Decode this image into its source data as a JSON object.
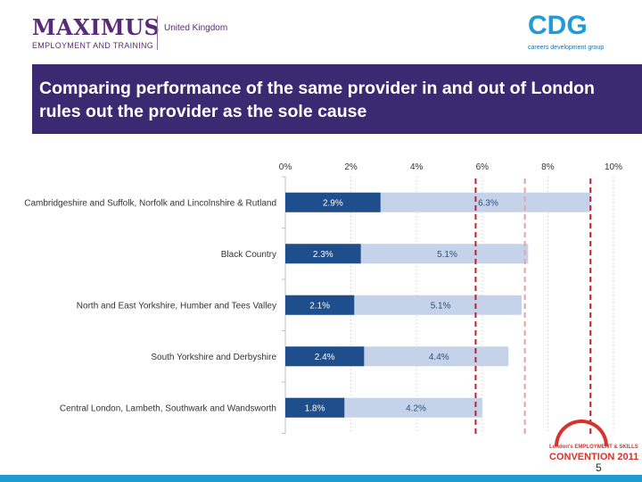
{
  "header": {
    "left_logo": {
      "brand": "MAXIMUS",
      "subtitle": "EMPLOYMENT AND TRAINING",
      "region": "United Kingdom"
    },
    "right_logo": {
      "mark": "CDG",
      "tagline": "careers development group"
    }
  },
  "title": "Comparing performance of the same provider in and out of London rules out the provider as the sole cause",
  "chart_data": {
    "type": "bar",
    "orientation": "horizontal",
    "xlim": [
      0,
      10
    ],
    "x_ticks": [
      "0%",
      "2%",
      "4%",
      "6%",
      "8%",
      "10%"
    ],
    "categories": [
      "Cambridgeshire and Suffolk, Norfolk and Lincolnshire & Rutland",
      "Black Country",
      "North and East Yorkshire, Humber and Tees Valley",
      "South Yorkshire and Derbyshire",
      "Central London, Lambeth, Southwark and Wandsworth"
    ],
    "series": [
      {
        "values": [
          2.9,
          2.3,
          2.1,
          2.4,
          1.8
        ],
        "labels": [
          "2.9%",
          "2.3%",
          "2.1%",
          "2.4%",
          "1.8%"
        ],
        "color": "#1f4e8c"
      },
      {
        "values": [
          9.3,
          7.4,
          7.2,
          6.8,
          6.0
        ],
        "labels": [
          "6.3%",
          "5.1%",
          "5.1%",
          "4.4%",
          "4.2%"
        ],
        "color": "#c5d3ea"
      }
    ],
    "reference_lines": [
      {
        "value": 5.8,
        "color": "#c0202a"
      },
      {
        "value": 7.3,
        "color": "#e6a3a6"
      },
      {
        "value": 9.3,
        "color": "#c0202a"
      }
    ]
  },
  "footer": {
    "page_number": "5",
    "convention_logo": {
      "line1": "London's EMPLOYMENT & SKILLS",
      "line2": "CONVENTION 2011"
    }
  }
}
